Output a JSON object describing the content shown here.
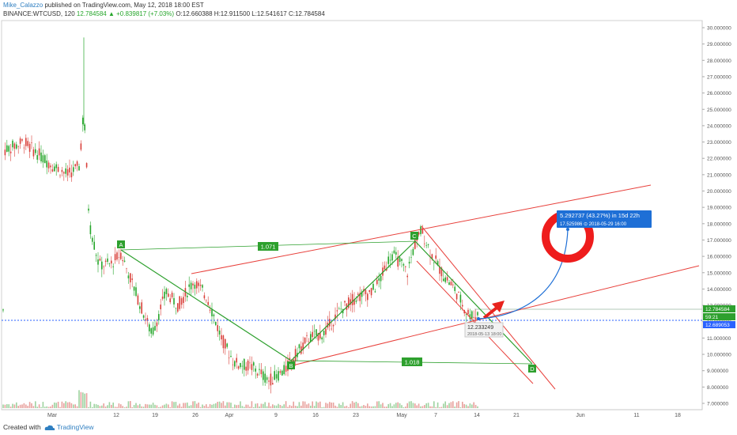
{
  "header": {
    "author": "Mike_Calazzo",
    "published": "published on TradingView.com, May 12, 2018 18:00 EST",
    "symbol_line": "BINANCE:WTCUSD, 120",
    "last_price": "12.784584",
    "change": "▲ +0.839817 (+7.03%)",
    "ohlc": "O:12.660388 H:12.911500 L:12.541617 C:12.784584"
  },
  "price_axis": {
    "ticks": [
      "30.000000",
      "29.000000",
      "28.000000",
      "27.000000",
      "26.000000",
      "25.000000",
      "24.000000",
      "23.000000",
      "22.000000",
      "21.000000",
      "20.000000",
      "19.000000",
      "18.000000",
      "17.000000",
      "16.000000",
      "15.000000",
      "14.000000",
      "13.000000",
      "12.000000",
      "11.000000",
      "10.000000",
      "9.000000",
      "8.000000",
      "7.000000"
    ],
    "labels": {
      "current_price": "12.784584",
      "countdown": "59:21",
      "dotted_level": "12.689053"
    }
  },
  "time_axis": {
    "ticks": [
      "Mar",
      "12",
      "19",
      "26",
      "Apr",
      "9",
      "16",
      "23",
      "May",
      "7",
      "14",
      "21",
      "Jun",
      "11",
      "18"
    ]
  },
  "pattern": {
    "points": [
      "A",
      "B",
      "C",
      "D"
    ],
    "ratio_ac": "1.071",
    "ratio_bd": "1.018"
  },
  "annotations": {
    "projection_line1": "5.292737 (43.27%) in 15d 22h",
    "projection_line2": "17.525986 ⊙ 2018-05-29 16:00",
    "crosshair_price": "12.233249",
    "crosshair_time": "2018-05-13 18:00"
  },
  "footer": {
    "created_with": "Created with",
    "brand": "TradingView"
  },
  "colors": {
    "pattern": "#2ea02e",
    "channel": "#e8413c",
    "projection": "#1e6fd6",
    "dotted_level": "#2962ff"
  }
}
